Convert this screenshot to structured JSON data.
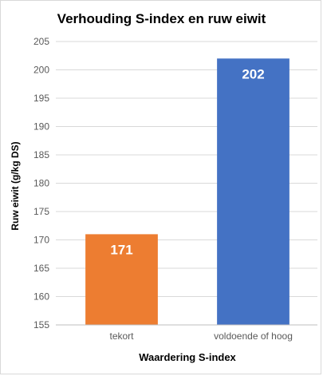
{
  "chart_data": {
    "type": "bar",
    "title": "Verhouding S-index en ruw eiwit",
    "xlabel": "Waardering S-index",
    "ylabel": "Ruw eiwit (g/kg DS)",
    "categories": [
      "tekort",
      "voldoende of hoog"
    ],
    "values": [
      171,
      202
    ],
    "data_labels": [
      "171",
      "202"
    ],
    "colors": [
      "#ed7d31",
      "#4472c4"
    ],
    "ylim": [
      155,
      205
    ],
    "yticks": [
      155,
      160,
      165,
      170,
      175,
      180,
      185,
      190,
      195,
      200,
      205
    ],
    "grid": true,
    "gridline_color": "#d9d9d9",
    "legend": "none"
  }
}
